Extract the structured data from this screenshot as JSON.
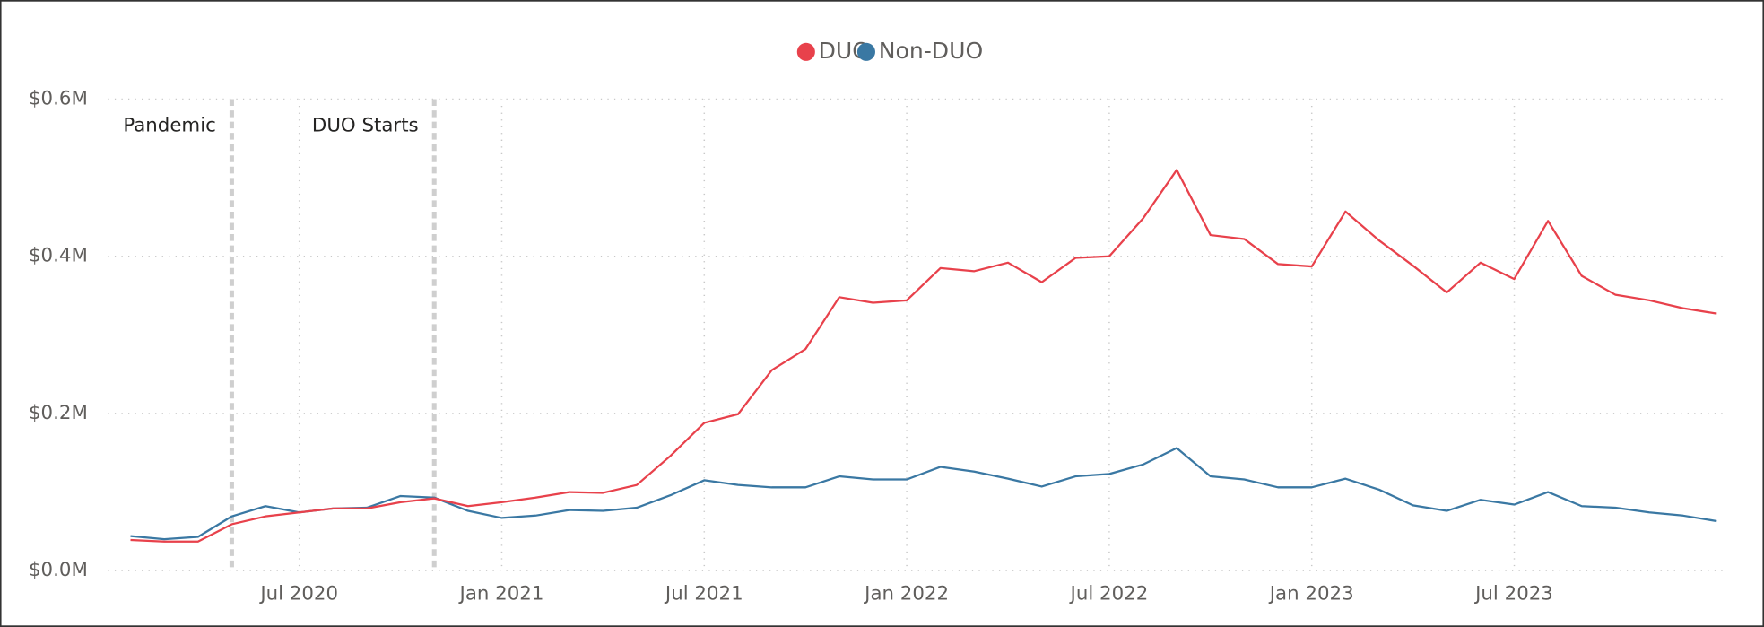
{
  "chart_data": {
    "type": "line",
    "x": [
      "2020-02",
      "2020-03",
      "2020-04",
      "2020-05",
      "2020-06",
      "2020-07",
      "2020-08",
      "2020-09",
      "2020-10",
      "2020-11",
      "2020-12",
      "2021-01",
      "2021-02",
      "2021-03",
      "2021-04",
      "2021-05",
      "2021-06",
      "2021-07",
      "2021-08",
      "2021-09",
      "2021-10",
      "2021-11",
      "2021-12",
      "2022-01",
      "2022-02",
      "2022-03",
      "2022-04",
      "2022-05",
      "2022-06",
      "2022-07",
      "2022-08",
      "2022-09",
      "2022-10",
      "2022-11",
      "2022-12",
      "2023-01",
      "2023-02",
      "2023-03",
      "2023-04",
      "2023-05",
      "2023-06",
      "2023-07",
      "2023-08",
      "2023-09",
      "2023-10",
      "2023-11",
      "2023-12",
      "2024-01"
    ],
    "series": [
      {
        "name": "DUO",
        "color": "#e8414b",
        "values": [
          39000,
          37000,
          37000,
          59000,
          69000,
          74000,
          79000,
          79000,
          87000,
          92000,
          82000,
          87000,
          93000,
          100000,
          99000,
          109000,
          146000,
          188000,
          199000,
          255000,
          282000,
          348000,
          341000,
          344000,
          385000,
          381000,
          392000,
          367000,
          398000,
          400000,
          448000,
          510000,
          427000,
          422000,
          390000,
          387000,
          457000,
          420000,
          388000,
          354000,
          392000,
          371000,
          445000,
          375000,
          351000,
          344000,
          334000,
          327000
        ]
      },
      {
        "name": "Non-DUO",
        "color": "#3a78a3",
        "values": [
          44000,
          40000,
          43000,
          69000,
          82000,
          74000,
          79000,
          80000,
          95000,
          93000,
          76000,
          67000,
          70000,
          77000,
          76000,
          80000,
          96000,
          115000,
          109000,
          106000,
          106000,
          120000,
          116000,
          116000,
          132000,
          126000,
          117000,
          107000,
          120000,
          123000,
          135000,
          156000,
          120000,
          116000,
          106000,
          106000,
          117000,
          103000,
          83000,
          76000,
          90000,
          84000,
          100000,
          82000,
          80000,
          74000,
          70000,
          63000
        ]
      }
    ],
    "xlim": [
      "2020-02",
      "2024-01"
    ],
    "xticks": [
      {
        "value": "2020-07",
        "label": "Jul 2020"
      },
      {
        "value": "2021-01",
        "label": "Jan 2021"
      },
      {
        "value": "2021-07",
        "label": "Jul 2021"
      },
      {
        "value": "2022-01",
        "label": "Jan 2022"
      },
      {
        "value": "2022-07",
        "label": "Jul 2022"
      },
      {
        "value": "2023-01",
        "label": "Jan 2023"
      },
      {
        "value": "2023-07",
        "label": "Jul 2023"
      }
    ],
    "ylim": [
      0,
      600000
    ],
    "yticks": [
      {
        "value": 0,
        "label": "$0.0M"
      },
      {
        "value": 200000,
        "label": "$0.2M"
      },
      {
        "value": 400000,
        "label": "$0.4M"
      },
      {
        "value": 600000,
        "label": "$0.6M"
      }
    ],
    "grid": true,
    "legend": "top",
    "annotations": [
      {
        "text": "Pandemic",
        "x": "2020-05"
      },
      {
        "text": "DUO Starts",
        "x": "2020-11"
      }
    ]
  }
}
